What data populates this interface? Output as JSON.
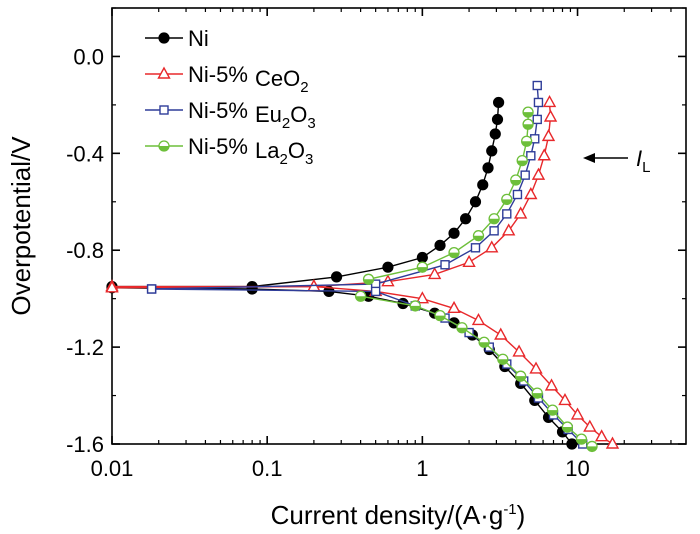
{
  "chart_data": {
    "type": "line",
    "x_scale": "log",
    "xlabel": "Current density/(A·g",
    "xlabel_sup": "-1",
    "xlabel_end": ")",
    "ylabel": "Overpotential/V",
    "xlim": [
      0.01,
      50
    ],
    "ylim": [
      -1.6,
      0.2
    ],
    "x_ticks": [
      {
        "value": 0.01,
        "label": "0.01"
      },
      {
        "value": 0.1,
        "label": "0.1"
      },
      {
        "value": 1,
        "label": "1"
      },
      {
        "value": 10,
        "label": "10"
      }
    ],
    "y_ticks": [
      {
        "value": 0.0,
        "label": "0.0"
      },
      {
        "value": -0.4,
        "label": "-0.4"
      },
      {
        "value": -0.8,
        "label": "-0.8"
      },
      {
        "value": -1.2,
        "label": "-1.2"
      },
      {
        "value": -1.6,
        "label": "-1.6"
      }
    ],
    "grid": false,
    "legend_position": "top-left",
    "annotation": {
      "main": "I",
      "sub": "L",
      "target_x": 7.0,
      "target_y": -0.38
    },
    "series": [
      {
        "name": "Ni",
        "label_main": "Ni",
        "label_suffix": "",
        "label_parts": [],
        "color": "#000000",
        "marker": "circle",
        "marker_fill": "#000000",
        "points": [
          [
            0.01,
            -0.95
          ],
          [
            0.08,
            -0.95
          ],
          [
            0.28,
            -0.91
          ],
          [
            0.6,
            -0.87
          ],
          [
            1.0,
            -0.83
          ],
          [
            1.3,
            -0.78
          ],
          [
            1.6,
            -0.73
          ],
          [
            1.9,
            -0.67
          ],
          [
            2.2,
            -0.6
          ],
          [
            2.45,
            -0.53
          ],
          [
            2.65,
            -0.46
          ],
          [
            2.8,
            -0.39
          ],
          [
            2.95,
            -0.32
          ],
          [
            3.05,
            -0.26
          ],
          [
            3.1,
            -0.19
          ]
        ],
        "cathodic": [
          [
            0.01,
            -0.955
          ],
          [
            0.08,
            -0.96
          ],
          [
            0.25,
            -0.97
          ],
          [
            0.45,
            -0.99
          ],
          [
            0.75,
            -1.02
          ],
          [
            1.2,
            -1.06
          ],
          [
            1.6,
            -1.1
          ],
          [
            2.1,
            -1.15
          ],
          [
            2.7,
            -1.21
          ],
          [
            3.4,
            -1.28
          ],
          [
            4.3,
            -1.35
          ],
          [
            5.3,
            -1.42
          ],
          [
            6.5,
            -1.49
          ],
          [
            8.0,
            -1.55
          ],
          [
            9.2,
            -1.6
          ]
        ]
      },
      {
        "name": "Ni-5% CeO2",
        "label_main": "Ni-5%",
        "label_suffix": "",
        "label_parts": [
          {
            "t": "CeO",
            "sub": false
          },
          {
            "t": "2",
            "sub": true
          }
        ],
        "color": "#e8282b",
        "marker": "triangle",
        "marker_fill": "#ffffff",
        "points": [
          [
            0.01,
            -0.95
          ],
          [
            0.2,
            -0.95
          ],
          [
            0.6,
            -0.93
          ],
          [
            1.2,
            -0.9
          ],
          [
            2.0,
            -0.85
          ],
          [
            2.8,
            -0.79
          ],
          [
            3.6,
            -0.72
          ],
          [
            4.3,
            -0.65
          ],
          [
            5.0,
            -0.57
          ],
          [
            5.6,
            -0.49
          ],
          [
            6.1,
            -0.41
          ],
          [
            6.5,
            -0.33
          ],
          [
            6.7,
            -0.25
          ],
          [
            6.6,
            -0.19
          ]
        ],
        "cathodic": [
          [
            0.01,
            -0.955
          ],
          [
            0.2,
            -0.95
          ],
          [
            0.5,
            -0.97
          ],
          [
            1.0,
            -1.0
          ],
          [
            1.6,
            -1.04
          ],
          [
            2.3,
            -1.09
          ],
          [
            3.2,
            -1.15
          ],
          [
            4.2,
            -1.22
          ],
          [
            5.4,
            -1.29
          ],
          [
            6.8,
            -1.36
          ],
          [
            8.3,
            -1.42
          ],
          [
            10.0,
            -1.48
          ],
          [
            12.0,
            -1.53
          ],
          [
            14.3,
            -1.57
          ],
          [
            16.8,
            -1.6
          ]
        ]
      },
      {
        "name": "Ni-5% Eu2O3",
        "label_main": "Ni-5%",
        "label_suffix": "",
        "label_parts": [
          {
            "t": "Eu",
            "sub": false
          },
          {
            "t": "2",
            "sub": true
          },
          {
            "t": "O",
            "sub": false
          },
          {
            "t": "3",
            "sub": true
          }
        ],
        "color": "#2f3d99",
        "marker": "square",
        "marker_fill": "#ffffff",
        "points": [
          [
            0.018,
            -0.96
          ],
          [
            0.5,
            -0.94
          ],
          [
            1.4,
            -0.86
          ],
          [
            2.2,
            -0.79
          ],
          [
            2.9,
            -0.72
          ],
          [
            3.5,
            -0.65
          ],
          [
            4.1,
            -0.57
          ],
          [
            4.6,
            -0.49
          ],
          [
            5.0,
            -0.41
          ],
          [
            5.3,
            -0.34
          ],
          [
            5.5,
            -0.26
          ],
          [
            5.6,
            -0.19
          ],
          [
            5.5,
            -0.12
          ]
        ],
        "cathodic": [
          [
            0.018,
            -0.96
          ],
          [
            0.5,
            -0.97
          ],
          [
            0.9,
            -1.03
          ],
          [
            1.4,
            -1.08
          ],
          [
            2.0,
            -1.14
          ],
          [
            2.7,
            -1.2
          ],
          [
            3.5,
            -1.27
          ],
          [
            4.5,
            -1.34
          ],
          [
            5.6,
            -1.41
          ],
          [
            7.0,
            -1.48
          ],
          [
            8.7,
            -1.54
          ],
          [
            10.8,
            -1.6
          ]
        ]
      },
      {
        "name": "Ni-5% La2O3",
        "label_main": "Ni-5%",
        "label_suffix": "",
        "label_parts": [
          {
            "t": "La",
            "sub": false
          },
          {
            "t": "2",
            "sub": true
          },
          {
            "t": "O",
            "sub": false
          },
          {
            "t": "3",
            "sub": true
          }
        ],
        "color": "#6dbf3a",
        "marker": "half-circle",
        "marker_fill": "#ffffff",
        "points": [
          [
            0.45,
            -0.92
          ],
          [
            1.0,
            -0.87
          ],
          [
            1.6,
            -0.81
          ],
          [
            2.3,
            -0.74
          ],
          [
            2.9,
            -0.67
          ],
          [
            3.5,
            -0.59
          ],
          [
            4.0,
            -0.51
          ],
          [
            4.4,
            -0.43
          ],
          [
            4.7,
            -0.35
          ],
          [
            4.8,
            -0.28
          ],
          [
            4.8,
            -0.23
          ]
        ],
        "cathodic": [
          [
            0.4,
            -0.99
          ],
          [
            0.9,
            -1.03
          ],
          [
            1.3,
            -1.07
          ],
          [
            1.8,
            -1.12
          ],
          [
            2.5,
            -1.18
          ],
          [
            3.3,
            -1.25
          ],
          [
            4.3,
            -1.32
          ],
          [
            5.5,
            -1.39
          ],
          [
            6.9,
            -1.46
          ],
          [
            8.6,
            -1.53
          ],
          [
            10.6,
            -1.58
          ],
          [
            12.4,
            -1.61
          ]
        ]
      }
    ]
  }
}
